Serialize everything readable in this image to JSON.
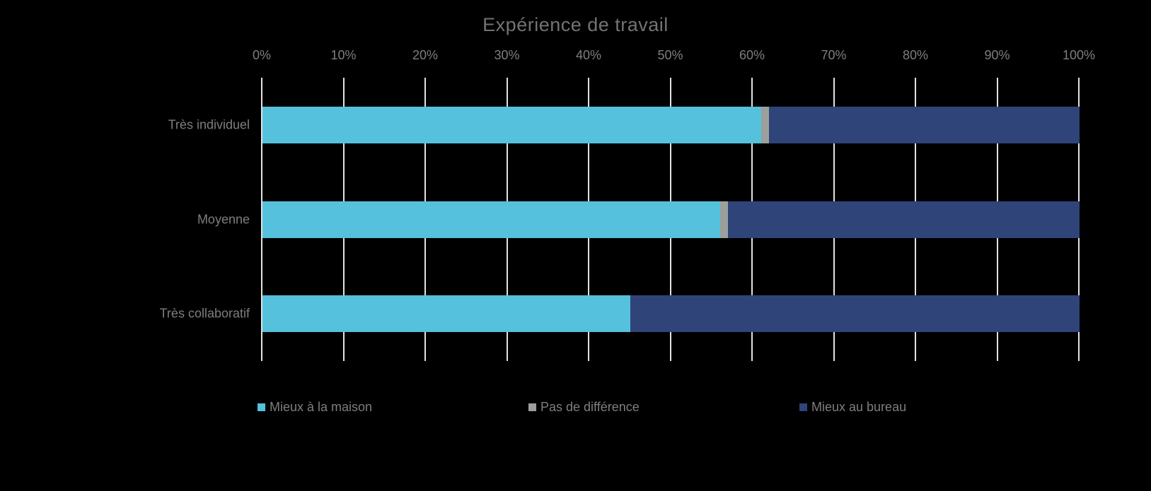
{
  "background_color": "#000000",
  "chart_data": {
    "type": "bar",
    "orientation": "horizontal",
    "stacked": true,
    "title": "Expérience de travail",
    "title_color": "#737373",
    "categories": [
      "Très individuel",
      "Moyenne",
      "Très collaboratif"
    ],
    "series": [
      {
        "name": "Mieux à la maison",
        "color": "#55C1DC",
        "values": [
          61,
          56,
          45
        ]
      },
      {
        "name": "Pas de différence",
        "color": "#9C9F9B",
        "values": [
          1,
          1,
          0
        ]
      },
      {
        "name": "Mieux au bureau",
        "color": "#2F4478",
        "values": [
          38,
          43,
          55
        ]
      }
    ],
    "x_axis": {
      "position": "top",
      "min": 0,
      "max": 100,
      "tick_labels": [
        "0%",
        "10%",
        "20%",
        "30%",
        "40%",
        "50%",
        "60%",
        "70%",
        "80%",
        "90%",
        "100%"
      ],
      "label_color": "#7E7E7E"
    },
    "y_axis": {
      "label_color": "#7E7E7E"
    },
    "grid": true,
    "gridline_color": "#E3E3E3",
    "legend_position": "bottom",
    "legend_labels": [
      "Mieux à la maison",
      "Pas de différence",
      "Mieux au bureau"
    ]
  }
}
